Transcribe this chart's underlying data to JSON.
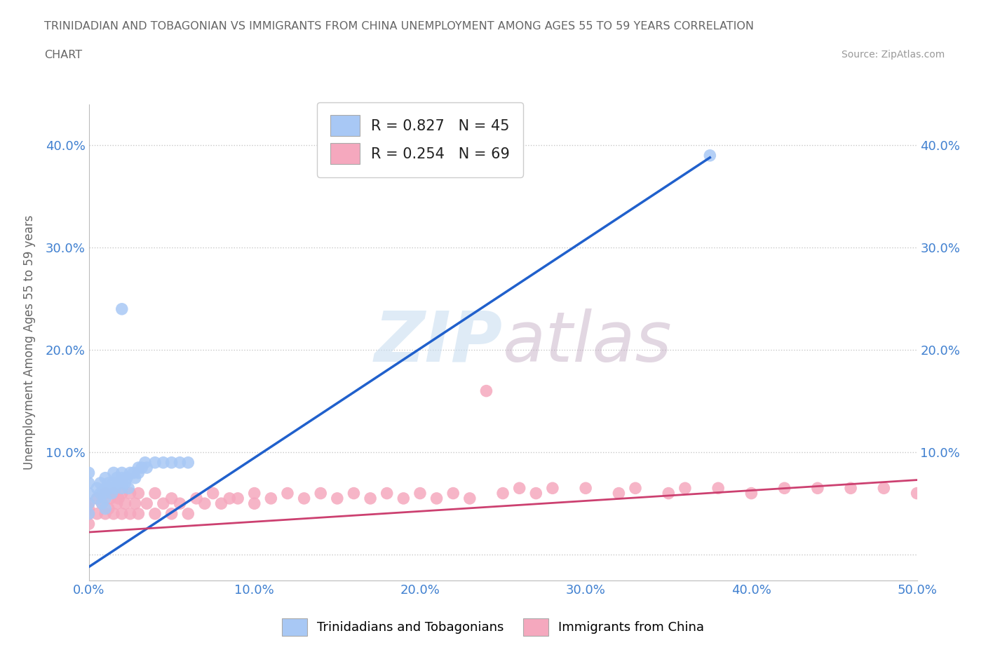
{
  "title_line1": "TRINIDADIAN AND TOBAGONIAN VS IMMIGRANTS FROM CHINA UNEMPLOYMENT AMONG AGES 55 TO 59 YEARS CORRELATION",
  "title_line2": "CHART",
  "source_text": "Source: ZipAtlas.com",
  "ylabel": "Unemployment Among Ages 55 to 59 years",
  "xlim": [
    0.0,
    0.5
  ],
  "ylim": [
    -0.025,
    0.44
  ],
  "xticks": [
    0.0,
    0.1,
    0.2,
    0.3,
    0.4,
    0.5
  ],
  "yticks": [
    0.0,
    0.1,
    0.2,
    0.3,
    0.4
  ],
  "xticklabels": [
    "0.0%",
    "10.0%",
    "20.0%",
    "30.0%",
    "40.0%",
    "50.0%"
  ],
  "yticklabels": [
    "",
    "10.0%",
    "20.0%",
    "30.0%",
    "40.0%"
  ],
  "watermark_zip": "ZIP",
  "watermark_atlas": "atlas",
  "trini_color": "#a8c8f5",
  "china_color": "#f5a8be",
  "trini_line_color": "#2060cc",
  "china_line_color": "#cc4070",
  "R_trini": 0.827,
  "N_trini": 45,
  "R_china": 0.254,
  "N_china": 69,
  "legend_label_trini": "Trinidadians and Tobagonians",
  "legend_label_china": "Immigrants from China",
  "background_color": "#ffffff",
  "grid_color": "#c8c8c8",
  "title_color": "#666666",
  "tick_color_blue": "#4080d0",
  "trini_line_x0": 0.0,
  "trini_line_y0": -0.012,
  "trini_line_x1": 0.375,
  "trini_line_y1": 0.388,
  "china_line_x0": 0.0,
  "china_line_y0": 0.022,
  "china_line_x1": 0.5,
  "china_line_y1": 0.073,
  "trini_x": [
    0.0,
    0.0,
    0.0,
    0.0,
    0.0,
    0.005,
    0.005,
    0.007,
    0.007,
    0.008,
    0.009,
    0.01,
    0.01,
    0.01,
    0.01,
    0.012,
    0.013,
    0.014,
    0.015,
    0.015,
    0.016,
    0.017,
    0.018,
    0.02,
    0.02,
    0.02,
    0.02,
    0.022,
    0.023,
    0.024,
    0.025,
    0.027,
    0.028,
    0.03,
    0.03,
    0.032,
    0.034,
    0.035,
    0.04,
    0.045,
    0.05,
    0.055,
    0.06,
    0.375,
    0.02
  ],
  "trini_y": [
    0.04,
    0.05,
    0.06,
    0.07,
    0.08,
    0.055,
    0.065,
    0.06,
    0.07,
    0.05,
    0.06,
    0.065,
    0.075,
    0.055,
    0.045,
    0.07,
    0.065,
    0.06,
    0.07,
    0.08,
    0.065,
    0.075,
    0.07,
    0.075,
    0.065,
    0.08,
    0.07,
    0.07,
    0.075,
    0.065,
    0.08,
    0.08,
    0.075,
    0.08,
    0.085,
    0.085,
    0.09,
    0.085,
    0.09,
    0.09,
    0.09,
    0.09,
    0.09,
    0.39,
    0.24
  ],
  "china_x": [
    0.0,
    0.0,
    0.0,
    0.0,
    0.005,
    0.005,
    0.008,
    0.01,
    0.01,
    0.012,
    0.013,
    0.015,
    0.015,
    0.017,
    0.018,
    0.02,
    0.02,
    0.022,
    0.025,
    0.025,
    0.028,
    0.03,
    0.03,
    0.035,
    0.04,
    0.04,
    0.045,
    0.05,
    0.05,
    0.055,
    0.06,
    0.065,
    0.07,
    0.075,
    0.08,
    0.085,
    0.09,
    0.1,
    0.1,
    0.11,
    0.12,
    0.13,
    0.14,
    0.15,
    0.16,
    0.17,
    0.18,
    0.19,
    0.2,
    0.21,
    0.22,
    0.23,
    0.25,
    0.26,
    0.27,
    0.28,
    0.3,
    0.32,
    0.33,
    0.35,
    0.36,
    0.38,
    0.4,
    0.42,
    0.44,
    0.46,
    0.48,
    0.5,
    0.24
  ],
  "china_y": [
    0.04,
    0.05,
    0.03,
    0.045,
    0.04,
    0.055,
    0.05,
    0.04,
    0.06,
    0.045,
    0.055,
    0.04,
    0.06,
    0.05,
    0.055,
    0.04,
    0.06,
    0.05,
    0.04,
    0.06,
    0.05,
    0.04,
    0.06,
    0.05,
    0.04,
    0.06,
    0.05,
    0.04,
    0.055,
    0.05,
    0.04,
    0.055,
    0.05,
    0.06,
    0.05,
    0.055,
    0.055,
    0.05,
    0.06,
    0.055,
    0.06,
    0.055,
    0.06,
    0.055,
    0.06,
    0.055,
    0.06,
    0.055,
    0.06,
    0.055,
    0.06,
    0.055,
    0.06,
    0.065,
    0.06,
    0.065,
    0.065,
    0.06,
    0.065,
    0.06,
    0.065,
    0.065,
    0.06,
    0.065,
    0.065,
    0.065,
    0.065,
    0.06,
    0.16
  ]
}
